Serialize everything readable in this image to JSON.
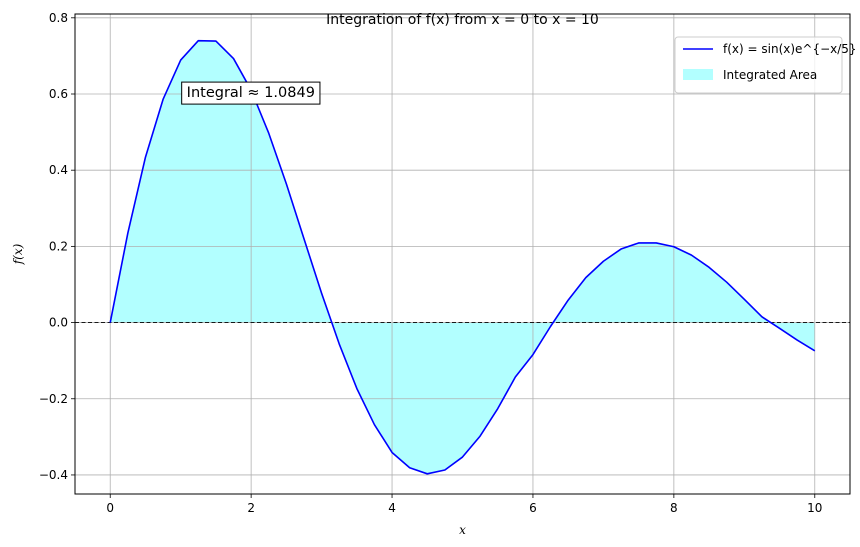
{
  "chart_data": {
    "type": "area",
    "title": "Integration of f(x) from x = 0 to x = 10",
    "xlabel": "x",
    "ylabel": "f(x)",
    "xlim": [
      -0.5,
      10.5
    ],
    "ylim": [
      -0.45,
      0.81
    ],
    "xticks": [
      0,
      2,
      4,
      6,
      8,
      10
    ],
    "yticks": [
      -0.4,
      -0.2,
      0.0,
      0.2,
      0.4,
      0.6,
      0.8
    ],
    "xtick_labels": [
      "0",
      "2",
      "4",
      "6",
      "8",
      "10"
    ],
    "ytick_labels": [
      "−0.4",
      "−0.2",
      "0.0",
      "0.2",
      "0.4",
      "0.6",
      "0.8"
    ],
    "grid": true,
    "legend_position": "top-right",
    "series": [
      {
        "name": "f(x) = sin(x)e^{−x/5}",
        "color": "#0000ff",
        "x": [
          0.0,
          0.25,
          0.5,
          0.75,
          1.0,
          1.25,
          1.5,
          1.75,
          2.0,
          2.25,
          2.5,
          2.75,
          3.0,
          3.25,
          3.5,
          3.75,
          4.0,
          4.25,
          4.5,
          4.75,
          5.0,
          5.25,
          5.5,
          5.75,
          6.0,
          6.25,
          6.5,
          6.75,
          7.0,
          7.25,
          7.5,
          7.75,
          8.0,
          8.25,
          8.5,
          8.75,
          9.0,
          9.25,
          9.5,
          9.75,
          10.0
        ],
        "y": [
          0.0,
          0.235,
          0.434,
          0.586,
          0.689,
          0.74,
          0.739,
          0.693,
          0.61,
          0.497,
          0.364,
          0.22,
          0.077,
          -0.056,
          -0.173,
          -0.268,
          -0.341,
          -0.381,
          -0.397,
          -0.387,
          -0.353,
          -0.298,
          -0.226,
          -0.143,
          -0.084,
          -0.01,
          0.059,
          0.118,
          0.161,
          0.193,
          0.209,
          0.209,
          0.199,
          0.177,
          0.145,
          0.106,
          0.061,
          0.015,
          -0.015,
          -0.046,
          -0.074
        ]
      }
    ],
    "fill": {
      "name": "Integrated Area",
      "color": "#00ffff",
      "alpha": 0.3
    },
    "zero_line": 0.0,
    "annotation": "Integral ≈ 1.0849",
    "annotation_at": [
      1.0,
      0.605
    ]
  }
}
